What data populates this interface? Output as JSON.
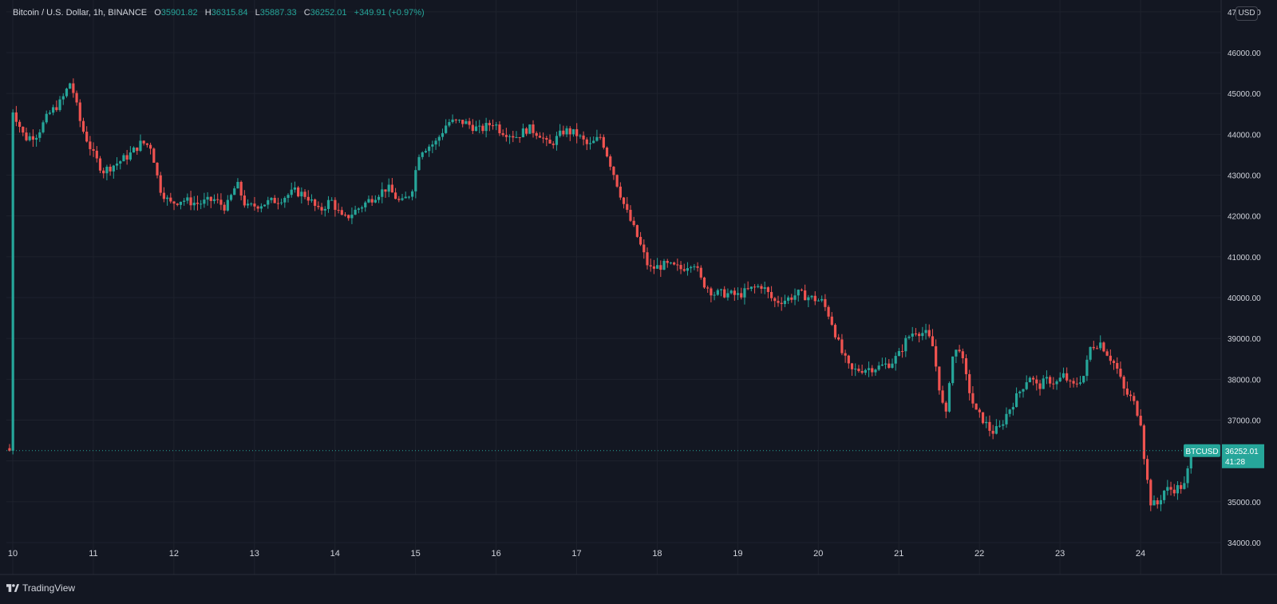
{
  "legend": {
    "symbol": "Bitcoin / U.S. Dollar, 1h, BINANCE",
    "open_label": "O",
    "open": "35901.82",
    "high_label": "H",
    "high": "36315.84",
    "low_label": "L",
    "low": "35887.33",
    "close_label": "C",
    "close": "36252.01",
    "change": "+349.91 (+0.97%)"
  },
  "currency_badge": "USD",
  "brand": "TradingView",
  "price_tag": {
    "symbol": "BTCUSD",
    "price": "36252.01",
    "countdown": "41:28"
  },
  "colors": {
    "background": "#131722",
    "up": "#26a69a",
    "down": "#ef5350",
    "grid": "#1e222d",
    "axis_text": "#d1d4dc"
  },
  "chart_data": {
    "type": "candlestick",
    "title": "Bitcoin / U.S. Dollar, 1h, BINANCE",
    "xlabel": "",
    "ylabel": "",
    "x_ticks": [
      "10",
      "11",
      "12",
      "13",
      "14",
      "15",
      "16",
      "17",
      "18",
      "19",
      "20",
      "21",
      "22",
      "23",
      "24"
    ],
    "y_ticks": [
      "34000.00",
      "35000.00",
      "36000.00",
      "37000.00",
      "38000.00",
      "39000.00",
      "40000.00",
      "41000.00",
      "42000.00",
      "43000.00",
      "44000.00",
      "45000.00",
      "46000.00",
      "47000.00"
    ],
    "ylim": [
      33900,
      47100
    ],
    "grid": true,
    "last_price": 36252.01,
    "close_path": [
      {
        "day": 10.0,
        "price": 44600
      },
      {
        "day": 10.15,
        "price": 43900
      },
      {
        "day": 10.3,
        "price": 44000
      },
      {
        "day": 10.45,
        "price": 44500
      },
      {
        "day": 10.6,
        "price": 44800
      },
      {
        "day": 10.72,
        "price": 45300
      },
      {
        "day": 10.85,
        "price": 44200
      },
      {
        "day": 11.0,
        "price": 43500
      },
      {
        "day": 11.12,
        "price": 43100
      },
      {
        "day": 11.3,
        "price": 43300
      },
      {
        "day": 11.45,
        "price": 43500
      },
      {
        "day": 11.6,
        "price": 43800
      },
      {
        "day": 11.72,
        "price": 43700
      },
      {
        "day": 11.82,
        "price": 42700
      },
      {
        "day": 11.95,
        "price": 42300
      },
      {
        "day": 12.1,
        "price": 42400
      },
      {
        "day": 12.3,
        "price": 42300
      },
      {
        "day": 12.5,
        "price": 42400
      },
      {
        "day": 12.65,
        "price": 42200
      },
      {
        "day": 12.78,
        "price": 42800
      },
      {
        "day": 12.9,
        "price": 42200
      },
      {
        "day": 13.1,
        "price": 42300
      },
      {
        "day": 13.3,
        "price": 42400
      },
      {
        "day": 13.5,
        "price": 42600
      },
      {
        "day": 13.65,
        "price": 42500
      },
      {
        "day": 13.8,
        "price": 42100
      },
      {
        "day": 13.95,
        "price": 42400
      },
      {
        "day": 14.1,
        "price": 41900
      },
      {
        "day": 14.3,
        "price": 42200
      },
      {
        "day": 14.5,
        "price": 42500
      },
      {
        "day": 14.65,
        "price": 42700
      },
      {
        "day": 14.82,
        "price": 42300
      },
      {
        "day": 14.95,
        "price": 42600
      },
      {
        "day": 15.05,
        "price": 43600
      },
      {
        "day": 15.25,
        "price": 43800
      },
      {
        "day": 15.4,
        "price": 44300
      },
      {
        "day": 15.6,
        "price": 44300
      },
      {
        "day": 15.8,
        "price": 44100
      },
      {
        "day": 15.97,
        "price": 44300
      },
      {
        "day": 16.05,
        "price": 44100
      },
      {
        "day": 16.25,
        "price": 43950
      },
      {
        "day": 16.4,
        "price": 44150
      },
      {
        "day": 16.55,
        "price": 44000
      },
      {
        "day": 16.65,
        "price": 43700
      },
      {
        "day": 16.85,
        "price": 44100
      },
      {
        "day": 17.0,
        "price": 44000
      },
      {
        "day": 17.15,
        "price": 43700
      },
      {
        "day": 17.3,
        "price": 43950
      },
      {
        "day": 17.45,
        "price": 43100
      },
      {
        "day": 17.6,
        "price": 42200
      },
      {
        "day": 17.75,
        "price": 41500
      },
      {
        "day": 17.9,
        "price": 40700
      },
      {
        "day": 18.1,
        "price": 40800
      },
      {
        "day": 18.3,
        "price": 40700
      },
      {
        "day": 18.45,
        "price": 40900
      },
      {
        "day": 18.55,
        "price": 40400
      },
      {
        "day": 18.7,
        "price": 40100
      },
      {
        "day": 18.85,
        "price": 40100
      },
      {
        "day": 19.0,
        "price": 40050
      },
      {
        "day": 19.15,
        "price": 40200
      },
      {
        "day": 19.3,
        "price": 40300
      },
      {
        "day": 19.45,
        "price": 39900
      },
      {
        "day": 19.6,
        "price": 39950
      },
      {
        "day": 19.75,
        "price": 40100
      },
      {
        "day": 19.9,
        "price": 40000
      },
      {
        "day": 20.05,
        "price": 39900
      },
      {
        "day": 20.15,
        "price": 39500
      },
      {
        "day": 20.28,
        "price": 38700
      },
      {
        "day": 20.4,
        "price": 38200
      },
      {
        "day": 20.55,
        "price": 38250
      },
      {
        "day": 20.75,
        "price": 38300
      },
      {
        "day": 20.9,
        "price": 38400
      },
      {
        "day": 21.0,
        "price": 38600
      },
      {
        "day": 21.1,
        "price": 39000
      },
      {
        "day": 21.2,
        "price": 39200
      },
      {
        "day": 21.35,
        "price": 39100
      },
      {
        "day": 21.42,
        "price": 38800
      },
      {
        "day": 21.52,
        "price": 37600
      },
      {
        "day": 21.58,
        "price": 37000
      },
      {
        "day": 21.65,
        "price": 38500
      },
      {
        "day": 21.75,
        "price": 38800
      },
      {
        "day": 21.85,
        "price": 37900
      },
      {
        "day": 21.95,
        "price": 37200
      },
      {
        "day": 22.05,
        "price": 37000
      },
      {
        "day": 22.15,
        "price": 36700
      },
      {
        "day": 22.25,
        "price": 36800
      },
      {
        "day": 22.35,
        "price": 37200
      },
      {
        "day": 22.5,
        "price": 37700
      },
      {
        "day": 22.62,
        "price": 38100
      },
      {
        "day": 22.72,
        "price": 37800
      },
      {
        "day": 22.85,
        "price": 38000
      },
      {
        "day": 22.95,
        "price": 37900
      },
      {
        "day": 23.05,
        "price": 38100
      },
      {
        "day": 23.15,
        "price": 37800
      },
      {
        "day": 23.3,
        "price": 38100
      },
      {
        "day": 23.38,
        "price": 38800
      },
      {
        "day": 23.5,
        "price": 38900
      },
      {
        "day": 23.6,
        "price": 38600
      },
      {
        "day": 23.7,
        "price": 38300
      },
      {
        "day": 23.8,
        "price": 37700
      },
      {
        "day": 23.9,
        "price": 37500
      },
      {
        "day": 24.0,
        "price": 37000
      },
      {
        "day": 24.05,
        "price": 36000
      },
      {
        "day": 24.12,
        "price": 35000
      },
      {
        "day": 24.2,
        "price": 34900
      },
      {
        "day": 24.3,
        "price": 35300
      },
      {
        "day": 24.4,
        "price": 35300
      },
      {
        "day": 24.55,
        "price": 35400
      },
      {
        "day": 24.6,
        "price": 35900
      },
      {
        "day": 24.65,
        "price": 36252
      }
    ]
  }
}
